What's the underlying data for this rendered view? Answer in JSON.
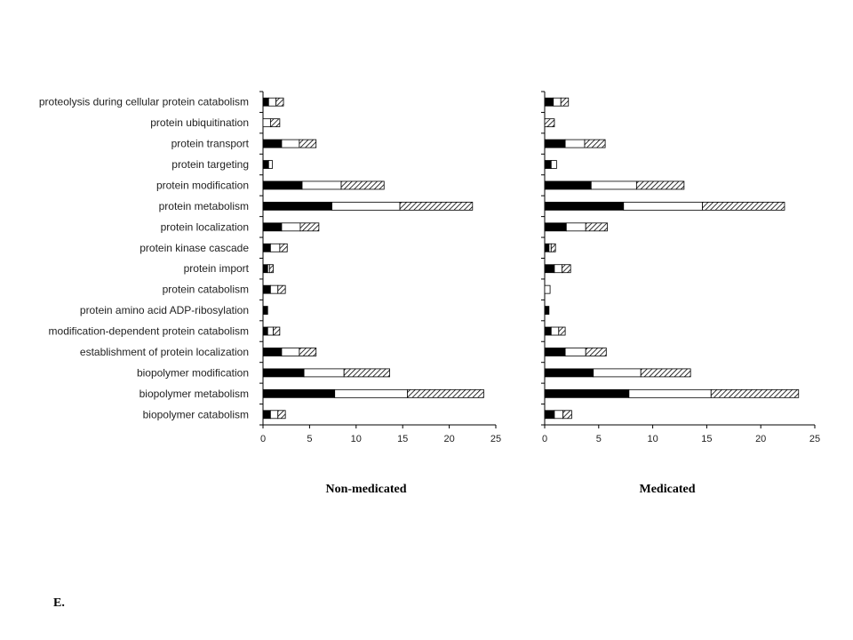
{
  "figure_label": "E.",
  "chart_data": [
    {
      "type": "bar",
      "orientation": "horizontal",
      "stacked": true,
      "title": "Non-medicated",
      "xlim": [
        0,
        25
      ],
      "xticks": [
        0,
        5,
        10,
        15,
        20,
        25
      ],
      "categories": [
        "proteolysis during cellular protein catabolism",
        "protein ubiquitination",
        "protein transport",
        "protein targeting",
        "protein modification",
        "protein metabolism",
        "protein localization",
        "protein kinase cascade",
        "protein import",
        "protein catabolism",
        "protein amino acid ADP-ribosylation",
        "modification-dependent protein catabolism",
        "establishment of protein localization",
        "biopolymer modification",
        "biopolymer metabolism",
        "biopolymer catabolism"
      ],
      "series": [
        {
          "fill": "solid",
          "values": [
            0.6,
            0,
            2.0,
            0.6,
            4.2,
            7.4,
            2.0,
            0.8,
            0.5,
            0.8,
            0.5,
            0.5,
            2.0,
            4.4,
            7.7,
            0.8
          ]
        },
        {
          "fill": "white",
          "values": [
            0.8,
            0.8,
            1.9,
            0.4,
            4.2,
            7.3,
            2.0,
            1.0,
            0.2,
            0.8,
            0,
            0.6,
            1.9,
            4.3,
            7.8,
            0.8
          ]
        },
        {
          "fill": "hatched",
          "values": [
            0.8,
            1.0,
            1.8,
            0,
            4.6,
            7.8,
            2.0,
            0.8,
            0.4,
            0.8,
            0,
            0.7,
            1.8,
            4.9,
            8.2,
            0.8
          ]
        }
      ]
    },
    {
      "type": "bar",
      "orientation": "horizontal",
      "stacked": true,
      "title": "Medicated",
      "xlim": [
        0,
        25
      ],
      "xticks": [
        0,
        5,
        10,
        15,
        20,
        25
      ],
      "categories": [
        "proteolysis during cellular protein catabolism",
        "protein ubiquitination",
        "protein transport",
        "protein targeting",
        "protein modification",
        "protein metabolism",
        "protein localization",
        "protein kinase cascade",
        "protein import",
        "protein catabolism",
        "protein amino acid ADP-ribosylation",
        "modification-dependent protein catabolism",
        "establishment of protein localization",
        "biopolymer modification",
        "biopolymer metabolism",
        "biopolymer catabolism"
      ],
      "series": [
        {
          "fill": "solid",
          "values": [
            0.8,
            0,
            1.9,
            0.6,
            4.3,
            7.3,
            2.0,
            0.4,
            0.9,
            0,
            0.4,
            0.6,
            1.9,
            4.5,
            7.8,
            0.9
          ]
        },
        {
          "fill": "white",
          "values": [
            0.7,
            0,
            1.8,
            0.5,
            4.2,
            7.3,
            1.8,
            0.2,
            0.7,
            0.5,
            0,
            0.7,
            1.9,
            4.4,
            7.6,
            0.8
          ]
        },
        {
          "fill": "hatched",
          "values": [
            0.7,
            0.9,
            1.9,
            0,
            4.4,
            7.6,
            2.0,
            0.4,
            0.8,
            0,
            0,
            0.6,
            1.9,
            4.6,
            8.1,
            0.8
          ]
        }
      ]
    }
  ]
}
